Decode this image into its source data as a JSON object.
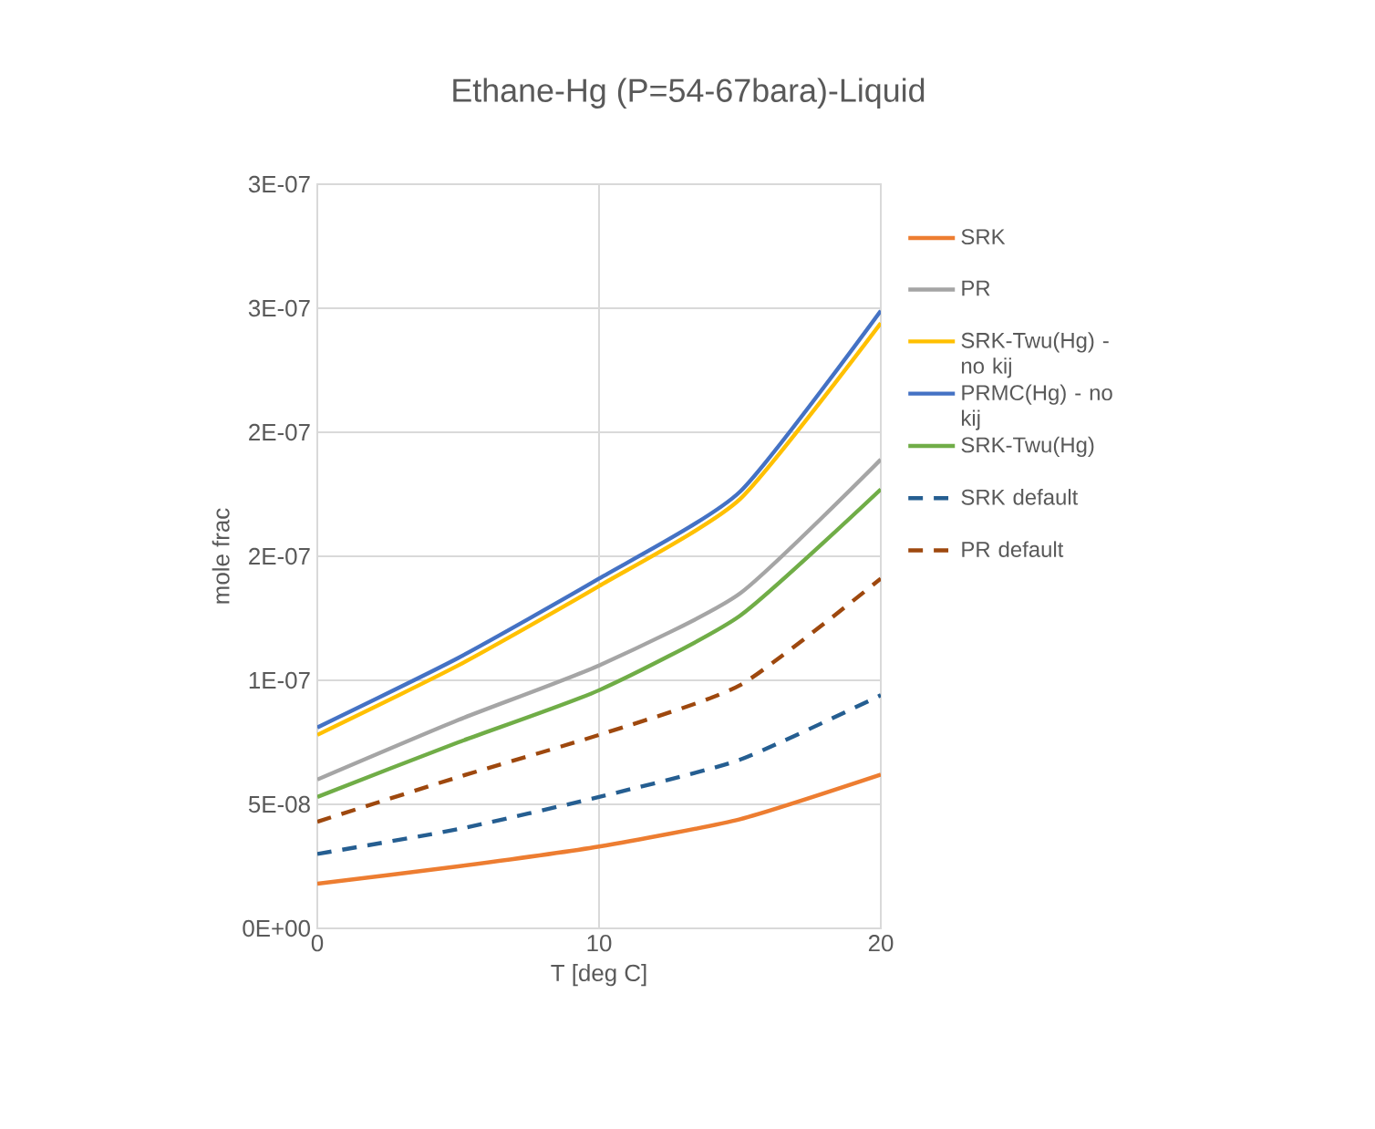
{
  "chart_data": {
    "type": "line",
    "title": "Ethane-Hg (P=54-67bara)-Liquid",
    "xlabel": "T [deg C]",
    "ylabel": "mole frac",
    "x": [
      0,
      5,
      10,
      15,
      20
    ],
    "series": [
      {
        "name": "SRK",
        "color": "#ed7d31",
        "values": [
          1.8e-08,
          2.5e-08,
          3.3e-08,
          4.4e-08,
          6.2e-08
        ]
      },
      {
        "name": "PR",
        "color": "#a5a5a5",
        "values": [
          6e-08,
          8.4e-08,
          1.06e-07,
          1.35e-07,
          1.89e-07
        ]
      },
      {
        "name": "SRK-Twu(Hg) - no kij",
        "color": "#ffc000",
        "values": [
          7.8e-08,
          1.06e-07,
          1.38e-07,
          1.73e-07,
          2.44e-07
        ]
      },
      {
        "name": "PRMC(Hg) - no kij",
        "color": "#4472c4",
        "values": [
          8.1e-08,
          1.09e-07,
          1.41e-07,
          1.76e-07,
          2.49e-07
        ]
      },
      {
        "name": "SRK-Twu(Hg)",
        "color": "#70ad47",
        "values": [
          5.3e-08,
          7.5e-08,
          9.6e-08,
          1.26e-07,
          1.77e-07
        ]
      },
      {
        "name": "SRK default",
        "color": "#255e91",
        "line_style": "dashed",
        "values": [
          3e-08,
          4e-08,
          5.3e-08,
          6.8e-08,
          9.4e-08
        ]
      },
      {
        "name": "PR default",
        "color": "#9e480e",
        "line_style": "dashed",
        "values": [
          4.3e-08,
          6.1e-08,
          7.8e-08,
          9.8e-08,
          1.41e-07
        ]
      }
    ],
    "xlim": [
      0,
      20
    ],
    "xticks": [
      0,
      10,
      20
    ],
    "ylim": [
      0,
      3e-07
    ],
    "yticks": [
      {
        "value": 0,
        "label": "0E+00"
      },
      {
        "value": 5e-08,
        "label": "5E-08"
      },
      {
        "value": 1e-07,
        "label": "1E-07"
      },
      {
        "value": 1.5e-07,
        "label": "2E-07"
      },
      {
        "value": 2e-07,
        "label": "2E-07"
      },
      {
        "value": 2.5e-07,
        "label": "3E-07"
      },
      {
        "value": 3e-07,
        "label": "3E-07"
      }
    ],
    "grid": true,
    "legend": "right",
    "marker": "none",
    "line_style": "solid"
  }
}
